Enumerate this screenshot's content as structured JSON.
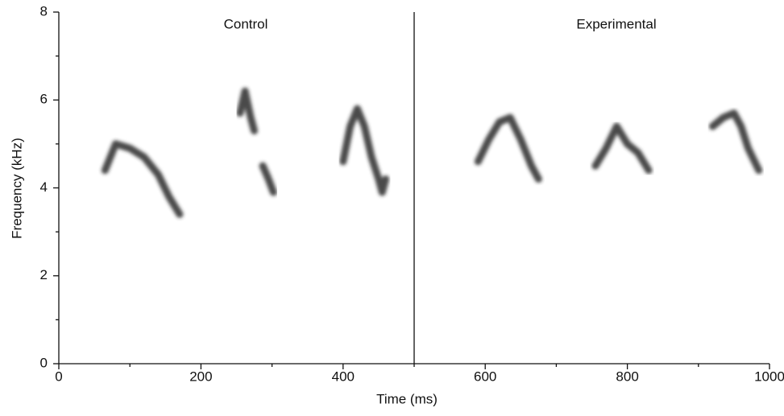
{
  "chart_data": {
    "type": "line",
    "x_label": "Time (ms)",
    "y_label": "Frequency (kHz)",
    "annotations": [
      "Control",
      "Experimental"
    ],
    "divider": 500,
    "color": "#2a2a2a",
    "xlim": [
      0,
      1000
    ],
    "xticks": [
      0,
      200,
      400,
      600,
      800,
      1000
    ],
    "xminorticks": [
      100,
      300,
      500,
      700,
      900
    ],
    "ylim": [
      0,
      8
    ],
    "yticks": [
      0,
      2,
      4,
      6,
      8
    ],
    "yminorticks": [
      1,
      3,
      5,
      7
    ],
    "series": [
      {
        "x": [
          65,
          80,
          100,
          120,
          140,
          155,
          170
        ],
        "values": [
          4.4,
          5.0,
          4.9,
          4.7,
          4.3,
          3.8,
          3.4
        ]
      },
      {
        "x": [
          255,
          262,
          270,
          275,
          280,
          287,
          295,
          302
        ],
        "values": [
          5.7,
          6.2,
          5.6,
          5.3,
          null,
          4.5,
          4.2,
          3.9
        ]
      },
      {
        "x": [
          400,
          410,
          420,
          430,
          440,
          450,
          455,
          460
        ],
        "values": [
          4.6,
          5.4,
          5.8,
          5.4,
          4.7,
          4.2,
          3.9,
          4.2
        ]
      },
      {
        "x": [
          590,
          605,
          620,
          635,
          650,
          665,
          675
        ],
        "values": [
          4.6,
          5.1,
          5.5,
          5.6,
          5.1,
          4.5,
          4.2
        ]
      },
      {
        "x": [
          755,
          770,
          785,
          800,
          815,
          830
        ],
        "values": [
          4.5,
          4.9,
          5.4,
          5.0,
          4.8,
          4.4
        ]
      },
      {
        "x": [
          920,
          935,
          950,
          960,
          970,
          985
        ],
        "values": [
          5.4,
          5.6,
          5.7,
          5.4,
          4.9,
          4.4
        ]
      }
    ]
  }
}
